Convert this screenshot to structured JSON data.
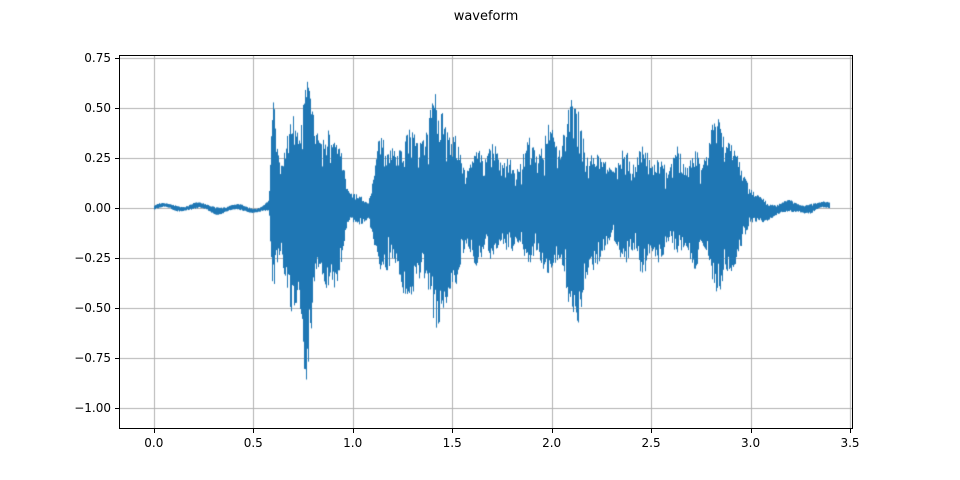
{
  "chart_data": {
    "type": "line",
    "title": "waveform",
    "xlabel": "",
    "ylabel": "",
    "grid": true,
    "legend": false,
    "line_color": "#1f77b4",
    "grid_color": "#b0b0b0",
    "spine_color": "#000000",
    "background": "#ffffff",
    "xlim": [
      -0.17,
      3.51
    ],
    "ylim": [
      -1.1,
      0.76
    ],
    "x_ticks": [
      0.0,
      0.5,
      1.0,
      1.5,
      2.0,
      2.5,
      3.0,
      3.5
    ],
    "x_tick_labels": [
      "0.0",
      "0.5",
      "1.0",
      "1.5",
      "2.0",
      "2.5",
      "3.0",
      "3.5"
    ],
    "y_ticks": [
      0.75,
      0.5,
      0.25,
      0.0,
      -0.25,
      -0.5,
      -0.75,
      -1.0
    ],
    "y_tick_labels": [
      "0.75",
      "0.50",
      "0.25",
      "0.00",
      "−0.25",
      "−0.50",
      "−0.75",
      "−1.00"
    ],
    "envelope_note": "amplitude envelope of audio waveform vs time (s): [t, max, min]",
    "envelope": [
      [
        0.0,
        0.012,
        -0.012
      ],
      [
        0.15,
        0.015,
        -0.015
      ],
      [
        0.3,
        0.02,
        -0.02
      ],
      [
        0.45,
        0.015,
        -0.015
      ],
      [
        0.55,
        0.015,
        -0.015
      ],
      [
        0.58,
        0.03,
        -0.03
      ],
      [
        0.6,
        0.63,
        -0.5
      ],
      [
        0.63,
        0.32,
        -0.35
      ],
      [
        0.66,
        0.36,
        -0.42
      ],
      [
        0.7,
        0.5,
        -0.55
      ],
      [
        0.73,
        0.55,
        -0.7
      ],
      [
        0.76,
        0.65,
        -1.0
      ],
      [
        0.79,
        0.6,
        -0.72
      ],
      [
        0.82,
        0.55,
        -0.48
      ],
      [
        0.85,
        0.36,
        -0.36
      ],
      [
        0.88,
        0.45,
        -0.42
      ],
      [
        0.91,
        0.5,
        -0.56
      ],
      [
        0.94,
        0.3,
        -0.3
      ],
      [
        0.97,
        0.13,
        -0.13
      ],
      [
        1.0,
        0.1,
        -0.1
      ],
      [
        1.04,
        0.07,
        -0.07
      ],
      [
        1.08,
        0.06,
        -0.06
      ],
      [
        1.1,
        0.18,
        -0.22
      ],
      [
        1.13,
        0.36,
        -0.32
      ],
      [
        1.17,
        0.32,
        -0.36
      ],
      [
        1.2,
        0.42,
        -0.4
      ],
      [
        1.25,
        0.36,
        -0.46
      ],
      [
        1.3,
        0.42,
        -0.46
      ],
      [
        1.35,
        0.46,
        -0.52
      ],
      [
        1.4,
        0.56,
        -0.56
      ],
      [
        1.44,
        0.67,
        -0.62
      ],
      [
        1.47,
        0.6,
        -0.72
      ],
      [
        1.5,
        0.42,
        -0.46
      ],
      [
        1.55,
        0.26,
        -0.3
      ],
      [
        1.6,
        0.29,
        -0.26
      ],
      [
        1.65,
        0.36,
        -0.31
      ],
      [
        1.7,
        0.31,
        -0.29
      ],
      [
        1.75,
        0.31,
        -0.26
      ],
      [
        1.8,
        0.26,
        -0.23
      ],
      [
        1.85,
        0.31,
        -0.26
      ],
      [
        1.9,
        0.36,
        -0.31
      ],
      [
        1.95,
        0.39,
        -0.36
      ],
      [
        2.0,
        0.46,
        -0.31
      ],
      [
        2.04,
        0.42,
        -0.36
      ],
      [
        2.08,
        0.57,
        -0.52
      ],
      [
        2.12,
        0.56,
        -0.66
      ],
      [
        2.16,
        0.5,
        -0.6
      ],
      [
        2.2,
        0.36,
        -0.41
      ],
      [
        2.25,
        0.23,
        -0.26
      ],
      [
        2.3,
        0.26,
        -0.23
      ],
      [
        2.35,
        0.31,
        -0.26
      ],
      [
        2.4,
        0.33,
        -0.31
      ],
      [
        2.45,
        0.31,
        -0.36
      ],
      [
        2.5,
        0.33,
        -0.31
      ],
      [
        2.55,
        0.26,
        -0.26
      ],
      [
        2.6,
        0.29,
        -0.23
      ],
      [
        2.65,
        0.31,
        -0.26
      ],
      [
        2.7,
        0.29,
        -0.31
      ],
      [
        2.75,
        0.31,
        -0.29
      ],
      [
        2.8,
        0.41,
        -0.36
      ],
      [
        2.85,
        0.5,
        -0.52
      ],
      [
        2.9,
        0.46,
        -0.41
      ],
      [
        2.95,
        0.21,
        -0.21
      ],
      [
        3.0,
        0.13,
        -0.13
      ],
      [
        3.05,
        0.07,
        -0.07
      ],
      [
        3.1,
        0.04,
        -0.04
      ],
      [
        3.2,
        0.03,
        -0.03
      ],
      [
        3.3,
        0.025,
        -0.025
      ],
      [
        3.4,
        0.015,
        -0.015
      ]
    ]
  }
}
